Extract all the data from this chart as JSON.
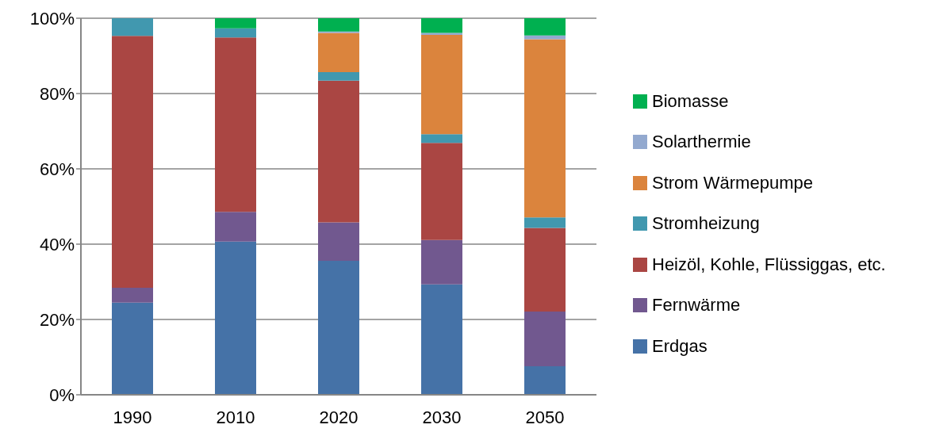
{
  "chart_data": {
    "type": "bar",
    "stacked": true,
    "categories": [
      "1990",
      "2010",
      "2020",
      "2030",
      "2050"
    ],
    "series": [
      {
        "name": "Erdgas",
        "color": "#4572a7",
        "values": [
          24.5,
          40.7,
          35.6,
          29.3,
          7.6
        ]
      },
      {
        "name": "Fernwärme",
        "color": "#71588f",
        "values": [
          3.9,
          7.9,
          10.2,
          11.8,
          14.5
        ]
      },
      {
        "name": "Heizöl, Kohle, Flüssiggas, etc.",
        "color": "#aa4643",
        "values": [
          66.9,
          46.3,
          37.6,
          25.8,
          22.2
        ]
      },
      {
        "name": "Stromheizung",
        "color": "#4198af",
        "values": [
          4.7,
          2.4,
          2.3,
          2.3,
          2.8
        ]
      },
      {
        "name": "Strom Wärmepumpe",
        "color": "#db843d",
        "values": [
          0,
          0,
          10.4,
          26.4,
          47.3
        ]
      },
      {
        "name": "Solarthermie",
        "color": "#93a9cf",
        "values": [
          0,
          0,
          0.4,
          0.5,
          1.0
        ]
      },
      {
        "name": "Biomasse",
        "color": "#00b050",
        "values": [
          0,
          2.7,
          3.5,
          3.9,
          4.6
        ]
      }
    ],
    "ylim": [
      0,
      100
    ],
    "yticks": [
      {
        "value": 0,
        "label": "0%"
      },
      {
        "value": 20,
        "label": "20%"
      },
      {
        "value": 40,
        "label": "40%"
      },
      {
        "value": 60,
        "label": "60%"
      },
      {
        "value": 80,
        "label": "80%"
      },
      {
        "value": 100,
        "label": "100%"
      }
    ],
    "grid": "y",
    "legend": "right"
  }
}
